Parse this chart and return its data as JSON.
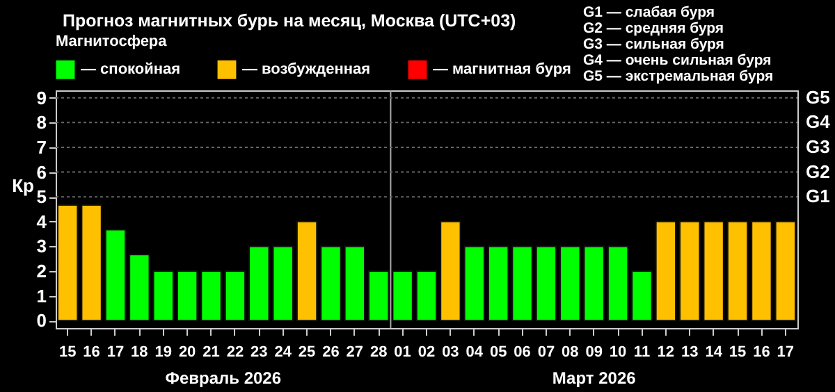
{
  "chart_data": {
    "type": "bar",
    "title": "Прогноз магнитных бурь на месяц, Москва (UTC+03)",
    "ylabel": "Кр",
    "legend_title": "Магнитосфера",
    "categories": [
      "15",
      "16",
      "17",
      "18",
      "19",
      "20",
      "21",
      "22",
      "23",
      "24",
      "25",
      "26",
      "27",
      "28",
      "01",
      "02",
      "03",
      "04",
      "05",
      "06",
      "07",
      "08",
      "09",
      "10",
      "11",
      "12",
      "13",
      "14",
      "15",
      "16",
      "17"
    ],
    "series": [
      {
        "name": "— спокойная",
        "color": "#00ff00",
        "values": [
          null,
          null,
          3.67,
          2.67,
          2,
          2,
          2,
          2,
          3,
          3,
          null,
          3,
          3,
          2,
          2,
          2,
          null,
          3,
          3,
          3,
          3,
          3,
          3,
          3,
          2,
          null,
          null,
          null,
          null,
          null,
          null
        ]
      },
      {
        "name": "— возбужденная",
        "color": "#ffc000",
        "values": [
          4.67,
          4.67,
          null,
          null,
          null,
          null,
          null,
          null,
          null,
          null,
          4,
          null,
          null,
          null,
          null,
          null,
          4,
          null,
          null,
          null,
          null,
          null,
          null,
          null,
          null,
          4,
          4,
          4,
          4,
          4,
          4
        ]
      },
      {
        "name": "— магнитная буря",
        "color": "#ff0000",
        "values": [
          null,
          null,
          null,
          null,
          null,
          null,
          null,
          null,
          null,
          null,
          null,
          null,
          null,
          null,
          null,
          null,
          null,
          null,
          null,
          null,
          null,
          null,
          null,
          null,
          null,
          null,
          null,
          null,
          null,
          null,
          null
        ]
      }
    ],
    "ylim": [
      -0.3,
      9.3
    ],
    "yticks": [
      0,
      1,
      2,
      3,
      4,
      5,
      6,
      7,
      8,
      9
    ],
    "legend": "top left",
    "ref_lines": [
      {
        "axis": "x",
        "value": "01",
        "color": "#aaaaaa"
      },
      {
        "axis": "y",
        "value": 5,
        "label": "G1",
        "color": "#666666",
        "line_style": "dotted"
      },
      {
        "axis": "y",
        "value": 6,
        "label": "G2",
        "color": "#666666",
        "line_style": "dotted"
      },
      {
        "axis": "y",
        "value": 7,
        "label": "G3",
        "color": "#666666",
        "line_style": "dotted"
      },
      {
        "axis": "y",
        "value": 8,
        "label": "G4",
        "color": "#666666",
        "line_style": "dotted"
      },
      {
        "axis": "y",
        "value": 9,
        "label": "G5",
        "color": "#666666",
        "line_style": "dotted"
      }
    ],
    "annotations": [
      "Февраль 2026",
      "Март 2026",
      "G1 — слабая буря",
      "G2 — средняя буря",
      "G3 — сильная буря",
      "G4 — очень сильная буря",
      "G5 — экстремальная буря"
    ]
  }
}
